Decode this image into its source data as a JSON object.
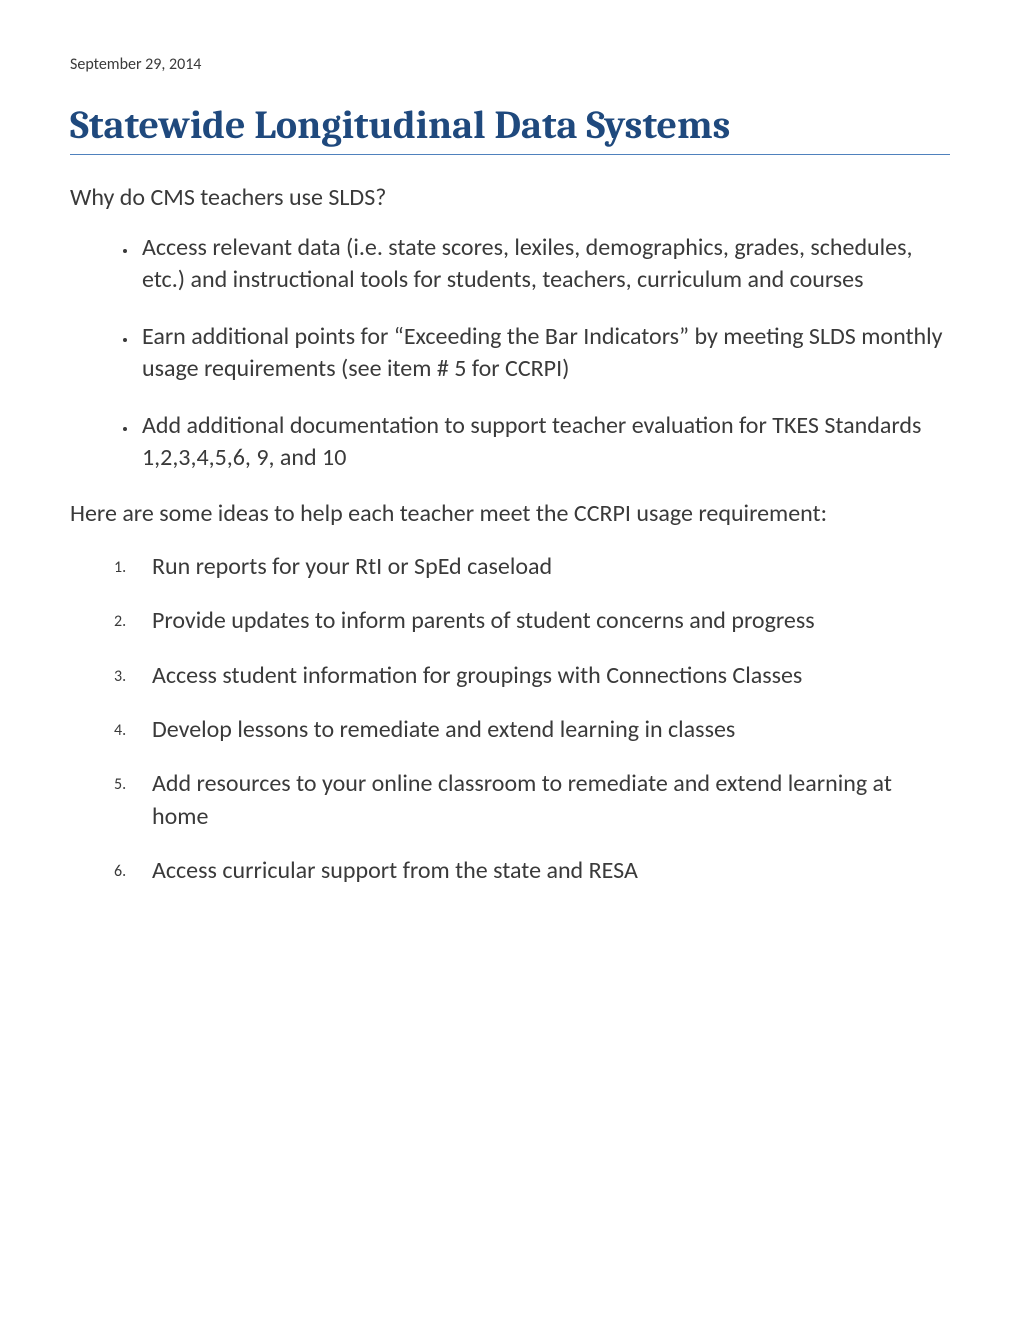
{
  "header": {
    "date": "September 29, 2014"
  },
  "title": "Statewide Longitudinal Data Systems",
  "intro1": "Why do CMS teachers use SLDS?",
  "bullets": [
    "Access relevant data (i.e. state scores, lexiles, demographics, grades, schedules, etc.) and instructional tools for students, teachers, curriculum and courses",
    "Earn additional points for “Exceeding the Bar Indicators” by meeting SLDS monthly usage requirements (see item # 5 for CCRPI)",
    "Add additional documentation to support teacher evaluation for TKES Standards 1,2,3,4,5,6, 9, and 10"
  ],
  "intro2": "Here are some ideas to help each teacher meet the CCRPI usage requirement:",
  "numbered": [
    "Run reports for your RtI or SpEd caseload",
    "Provide updates  to inform parents of student concerns and progress",
    "Access student information for groupings with Connections Classes",
    "Develop lessons to remediate and extend learning in classes",
    "Add resources to your online classroom to remediate and extend learning at home",
    "Access curricular support from the state and RESA"
  ],
  "colors": {
    "title_color": "#1f497d",
    "title_underline": "#4f81bd",
    "body_text": "#3a3a3a",
    "background": "#ffffff"
  },
  "typography": {
    "title_font": "Cambria",
    "title_size_pt": 28,
    "body_font": "Calibri",
    "body_size_pt": 16,
    "date_size_pt": 11,
    "list_marker_size_pt": 11
  }
}
